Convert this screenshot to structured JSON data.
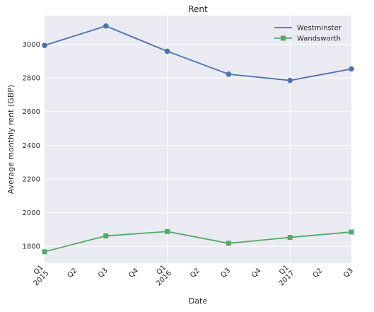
{
  "chart_data": {
    "type": "line",
    "title": "Rent",
    "xlabel": "Date",
    "ylabel": "Average monthly rent (GBP)",
    "x": [
      "2015-Q1",
      "2015-Q3",
      "2016-Q1",
      "2016-Q3",
      "2017-Q1",
      "2017-Q3"
    ],
    "x_tick_labels": [
      "Q1\n2015",
      "Q2",
      "Q3",
      "Q4",
      "Q1\n2016",
      "Q2",
      "Q3",
      "Q4",
      "Q1\n2017",
      "Q2",
      "Q3"
    ],
    "y_ticks": [
      1800,
      2000,
      2200,
      2400,
      2600,
      2800,
      3000
    ],
    "ylim": [
      1700,
      3170
    ],
    "xlim": [
      "2015-Q1",
      "2017-Q3"
    ],
    "grid": true,
    "legend_position": "top-right",
    "series": [
      {
        "name": "Westminster",
        "color": "#4c72b0",
        "marker": "circle",
        "values": [
          2993,
          3108,
          2958,
          2822,
          2785,
          2853
        ]
      },
      {
        "name": "Wandsworth",
        "color": "#55a868",
        "marker": "square",
        "values": [
          1768,
          1862,
          1888,
          1818,
          1853,
          1885
        ]
      }
    ]
  }
}
